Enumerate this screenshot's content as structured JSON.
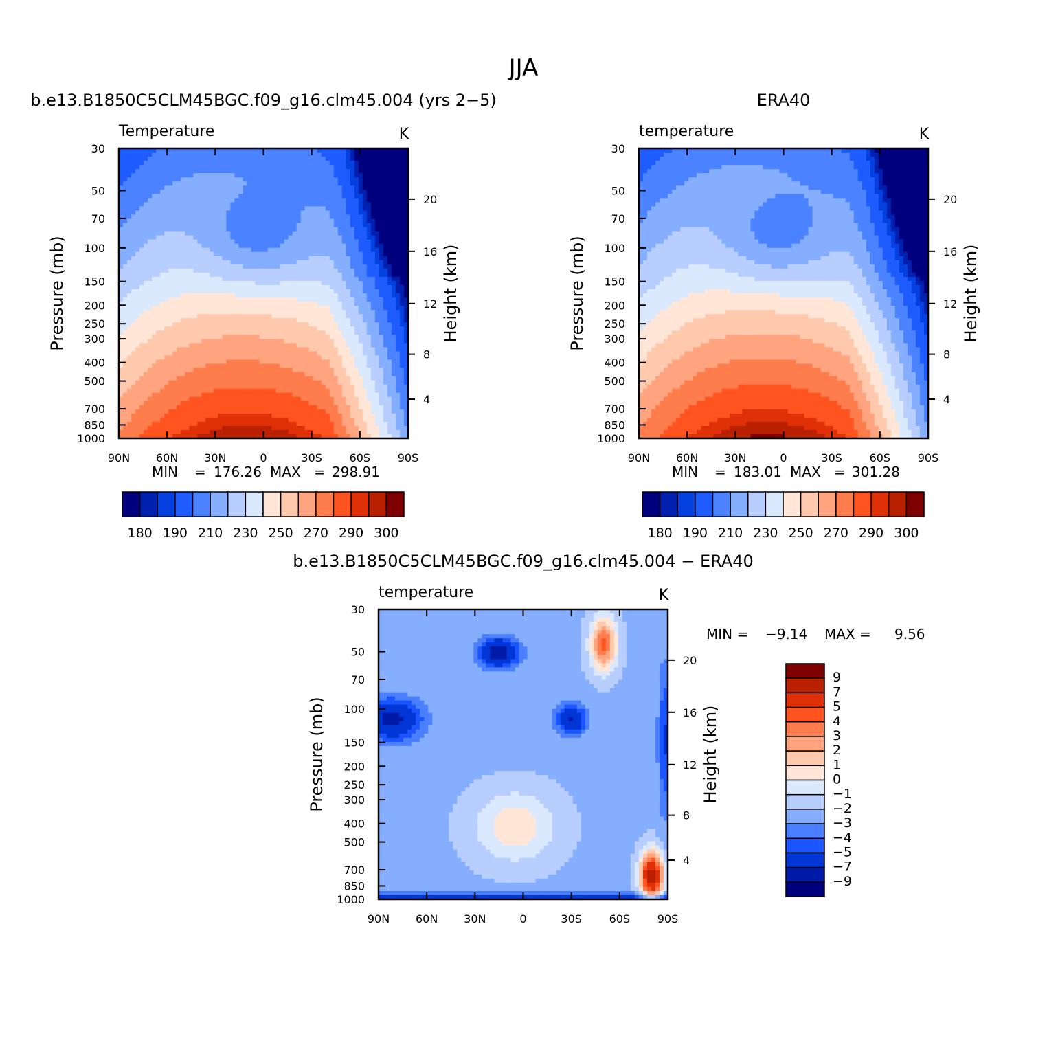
{
  "page_title": "JJA",
  "chart_data": [
    {
      "id": "model",
      "type": "heatmap",
      "title": "b.e13.B1850C5CLM45BGC.f09_g16.clm45.004 (yrs 2−5)",
      "subtitle_left": "Temperature",
      "units": "K",
      "xlabel": "",
      "ylabel": "Pressure (mb)",
      "ylabel_right": "Height (km)",
      "x_ticks": [
        "90N",
        "60N",
        "30N",
        "0",
        "30S",
        "60S",
        "90S"
      ],
      "y_ticks": [
        "30",
        "50",
        "70",
        "100",
        "150",
        "200",
        "250",
        "300",
        "400",
        "500",
        "700",
        "850",
        "1000"
      ],
      "y_ticks_right": [
        "20",
        "16",
        "12",
        "8",
        "4"
      ],
      "ylim": [
        1000,
        30
      ],
      "stats": {
        "min_label": "MIN",
        "min": "176.26",
        "max_label": "MAX",
        "max": "298.91"
      },
      "colorbar_labels": [
        "180",
        "190",
        "210",
        "230",
        "250",
        "270",
        "290",
        "300"
      ]
    },
    {
      "id": "obs",
      "type": "heatmap",
      "title": "ERA40",
      "subtitle_left": "temperature",
      "units": "K",
      "xlabel": "",
      "ylabel": "Pressure (mb)",
      "ylabel_right": "Height (km)",
      "x_ticks": [
        "90N",
        "60N",
        "30N",
        "0",
        "30S",
        "60S",
        "90S"
      ],
      "y_ticks": [
        "30",
        "50",
        "70",
        "100",
        "150",
        "200",
        "250",
        "300",
        "400",
        "500",
        "700",
        "850",
        "1000"
      ],
      "y_ticks_right": [
        "20",
        "16",
        "12",
        "8",
        "4"
      ],
      "ylim": [
        1000,
        30
      ],
      "stats": {
        "min_label": "MIN",
        "min": "183.01",
        "max_label": "MAX",
        "max": "301.28"
      },
      "colorbar_labels": [
        "180",
        "190",
        "210",
        "230",
        "250",
        "270",
        "290",
        "300"
      ]
    },
    {
      "id": "diff",
      "type": "heatmap",
      "title": "b.e13.B1850C5CLM45BGC.f09_g16.clm45.004 − ERA40",
      "subtitle_left": "temperature",
      "units": "K",
      "xlabel": "",
      "ylabel": "Pressure (mb)",
      "ylabel_right": "Height (km)",
      "x_ticks": [
        "90N",
        "60N",
        "30N",
        "0",
        "30S",
        "60S",
        "90S"
      ],
      "y_ticks": [
        "30",
        "50",
        "70",
        "100",
        "150",
        "200",
        "250",
        "300",
        "400",
        "500",
        "700",
        "850",
        "1000"
      ],
      "y_ticks_right": [
        "20",
        "16",
        "12",
        "8",
        "4"
      ],
      "ylim": [
        1000,
        30
      ],
      "stats": {
        "min_label": "MIN =",
        "min": "−9.14",
        "max_label": "MAX =",
        "max": "9.56"
      },
      "colorbar_labels": [
        "9",
        "7",
        "5",
        "4",
        "3",
        "2",
        "1",
        "0",
        "−1",
        "−2",
        "−3",
        "−4",
        "−5",
        "−7",
        "−9"
      ]
    }
  ],
  "colors": {
    "temperature_scale": [
      "#00007f",
      "#0020b0",
      "#0540e0",
      "#1e5cff",
      "#4a82ff",
      "#86aeff",
      "#b7ceff",
      "#dbe9ff",
      "#ffe6d6",
      "#ffc9ad",
      "#ffa47f",
      "#ff7d4d",
      "#ff5320",
      "#e03008",
      "#b82000",
      "#7f0000"
    ],
    "diff_scale": [
      "#00007f",
      "#001aa8",
      "#0035d6",
      "#1a55ff",
      "#4a7fff",
      "#86aeff",
      "#b7ceff",
      "#dbe9ff",
      "#ffe6d6",
      "#ffc9ad",
      "#ffa47f",
      "#ff7d4d",
      "#ff5320",
      "#e03008",
      "#b82000",
      "#7f0000"
    ]
  }
}
